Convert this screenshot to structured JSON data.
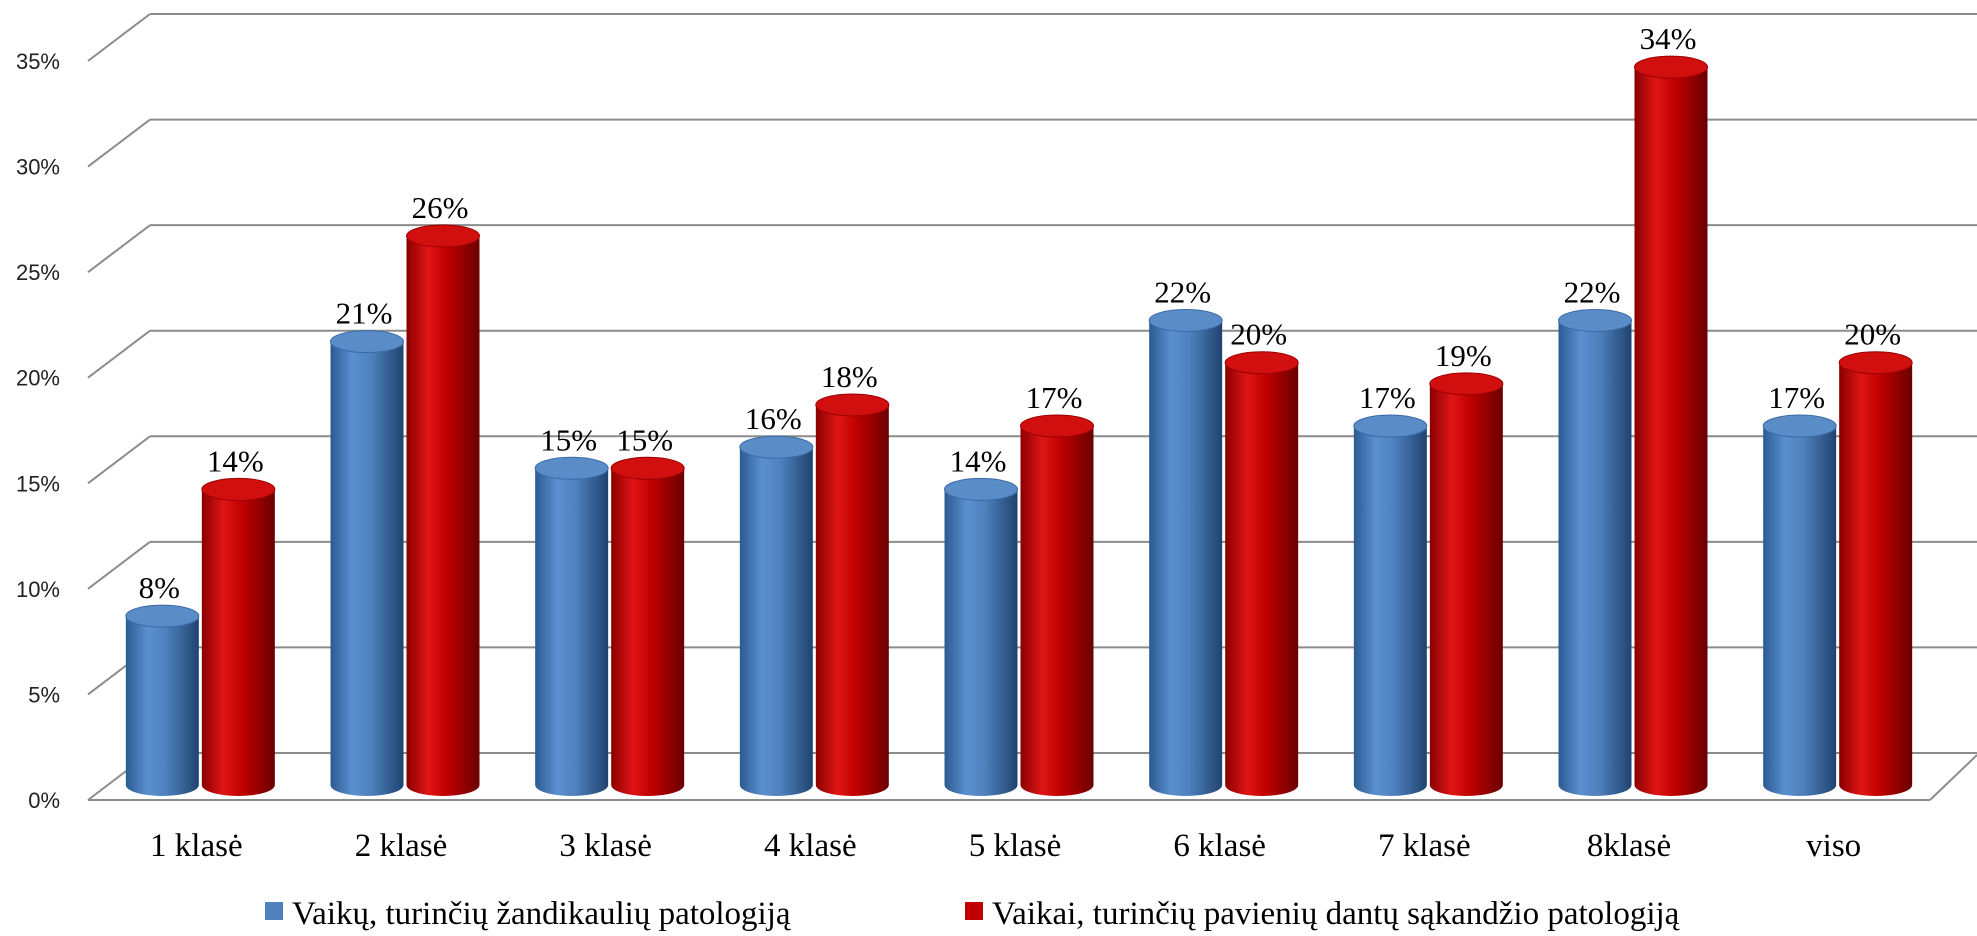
{
  "chart_data": {
    "type": "bar",
    "categories": [
      "1 klasė",
      "2 klasė",
      "3 klasė",
      "4 klasė",
      "5 klasė",
      "6 klasė",
      "7 klasė",
      "8klasė",
      "viso"
    ],
    "series": [
      {
        "name": "Vaikų, turinčių žandikaulių patologiją",
        "values": [
          8,
          21,
          15,
          16,
          14,
          22,
          17,
          22,
          17
        ],
        "value_labels": [
          "8%",
          "21%",
          "15%",
          "16%",
          "14%",
          "22%",
          "17%",
          "22%",
          "17%"
        ],
        "color": "#4f81bd"
      },
      {
        "name": "Vaikai, turinčių pavienių dantų sąkandžio patologiją",
        "values": [
          14,
          26,
          15,
          18,
          17,
          20,
          19,
          34,
          20
        ],
        "value_labels": [
          "14%",
          "26%",
          "15%",
          "18%",
          "17%",
          "20%",
          "19%",
          "34%",
          "20%"
        ],
        "color": "#c00000"
      }
    ],
    "y_ticks": [
      "0%",
      "5%",
      "10%",
      "15%",
      "20%",
      "25%",
      "30%",
      "35%"
    ],
    "ylim": [
      0,
      35
    ],
    "grid": true,
    "legend_position": "bottom",
    "style": "3d-cylinder"
  }
}
